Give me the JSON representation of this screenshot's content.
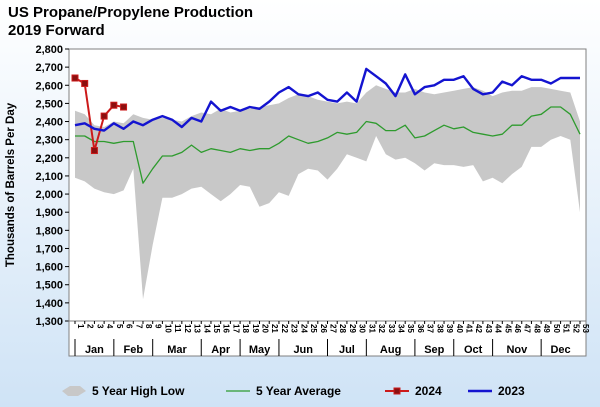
{
  "chart_data": {
    "type": "line",
    "title": "US Propane/Propylene Production",
    "subtitle": "2019 Forward",
    "ylabel": "Thousands of Barrels Per Day",
    "xlabel": "",
    "ylim": [
      1300,
      2800
    ],
    "yticks": [
      1300,
      1400,
      1500,
      1600,
      1700,
      1800,
      1900,
      2000,
      2100,
      2200,
      2300,
      2400,
      2500,
      2600,
      2700,
      2800
    ],
    "ytick_labels": [
      "1,300",
      "1,400",
      "1,500",
      "1,600",
      "1,700",
      "1,800",
      "1,900",
      "2,000",
      "2,100",
      "2,200",
      "2,300",
      "2,400",
      "2,500",
      "2,600",
      "2,700",
      "2,800"
    ],
    "xlim": [
      1,
      53
    ],
    "week_ticks": [
      "1",
      "2",
      "3",
      "4",
      "5",
      "6",
      "7",
      "8",
      "9",
      "10",
      "11",
      "12",
      "13",
      "14",
      "15",
      "16",
      "17",
      "18",
      "19",
      "20",
      "21",
      "22",
      "23",
      "24",
      "25",
      "26",
      "27",
      "28",
      "29",
      "30",
      "31",
      "32",
      "33",
      "34",
      "35",
      "36",
      "37",
      "38",
      "39",
      "40",
      "41",
      "42",
      "43",
      "44",
      "45",
      "46",
      "47",
      "48",
      "49",
      "50",
      "51",
      "52",
      "53"
    ],
    "months": [
      {
        "label": "Jan",
        "start": 1,
        "end": 5
      },
      {
        "label": "Feb",
        "start": 5,
        "end": 9
      },
      {
        "label": "Mar",
        "start": 9,
        "end": 14
      },
      {
        "label": "Apr",
        "start": 14,
        "end": 18
      },
      {
        "label": "May",
        "start": 18,
        "end": 22
      },
      {
        "label": "Jun",
        "start": 22,
        "end": 27
      },
      {
        "label": "Jul",
        "start": 27,
        "end": 31
      },
      {
        "label": "Aug",
        "start": 31,
        "end": 36
      },
      {
        "label": "Sep",
        "start": 36,
        "end": 40
      },
      {
        "label": "Oct",
        "start": 40,
        "end": 44
      },
      {
        "label": "Nov",
        "start": 44,
        "end": 49
      },
      {
        "label": "Dec",
        "start": 49,
        "end": 53
      }
    ],
    "series": [
      {
        "name": "5 Year High Low",
        "kind": "band",
        "color": "#c8c8c8",
        "x": [
          1,
          2,
          3,
          4,
          5,
          6,
          7,
          8,
          9,
          10,
          11,
          12,
          13,
          14,
          15,
          16,
          17,
          18,
          19,
          20,
          21,
          22,
          23,
          24,
          25,
          26,
          27,
          28,
          29,
          30,
          31,
          32,
          33,
          34,
          35,
          36,
          37,
          38,
          39,
          40,
          41,
          42,
          43,
          44,
          45,
          46,
          47,
          48,
          49,
          50,
          51,
          52,
          53
        ],
        "high": [
          2460,
          2440,
          2380,
          2370,
          2400,
          2390,
          2440,
          2420,
          2410,
          2420,
          2410,
          2400,
          2430,
          2450,
          2440,
          2470,
          2450,
          2460,
          2470,
          2480,
          2490,
          2500,
          2530,
          2550,
          2540,
          2520,
          2510,
          2500,
          2510,
          2500,
          2560,
          2600,
          2580,
          2560,
          2560,
          2580,
          2560,
          2550,
          2560,
          2570,
          2580,
          2590,
          2570,
          2540,
          2560,
          2570,
          2570,
          2590,
          2590,
          2580,
          2570,
          2560,
          2400
        ],
        "low": [
          2090,
          2070,
          2030,
          2010,
          2000,
          2020,
          2140,
          1420,
          1720,
          1980,
          1980,
          2000,
          2030,
          2040,
          2000,
          1960,
          2000,
          2050,
          2040,
          1930,
          1950,
          2010,
          1990,
          2110,
          2140,
          2130,
          2080,
          2140,
          2220,
          2200,
          2180,
          2320,
          2220,
          2190,
          2200,
          2170,
          2130,
          2170,
          2160,
          2160,
          2150,
          2160,
          2070,
          2090,
          2060,
          2110,
          2150,
          2260,
          2260,
          2300,
          2320,
          2300,
          1900
        ]
      },
      {
        "name": "5 Year Average",
        "kind": "line",
        "color": "#2e9b2e",
        "x": [
          1,
          2,
          3,
          4,
          5,
          6,
          7,
          8,
          9,
          10,
          11,
          12,
          13,
          14,
          15,
          16,
          17,
          18,
          19,
          20,
          21,
          22,
          23,
          24,
          25,
          26,
          27,
          28,
          29,
          30,
          31,
          32,
          33,
          34,
          35,
          36,
          37,
          38,
          39,
          40,
          41,
          42,
          43,
          44,
          45,
          46,
          47,
          48,
          49,
          50,
          51,
          52,
          53
        ],
        "values": [
          2320,
          2320,
          2290,
          2290,
          2280,
          2290,
          2290,
          2060,
          2140,
          2210,
          2210,
          2230,
          2270,
          2230,
          2250,
          2240,
          2230,
          2250,
          2240,
          2250,
          2250,
          2280,
          2320,
          2300,
          2280,
          2290,
          2310,
          2340,
          2330,
          2340,
          2400,
          2390,
          2350,
          2350,
          2380,
          2310,
          2320,
          2350,
          2380,
          2360,
          2370,
          2340,
          2330,
          2320,
          2330,
          2380,
          2380,
          2430,
          2440,
          2480,
          2480,
          2440,
          2330
        ]
      },
      {
        "name": "2024",
        "kind": "line",
        "color": "#cc1a1a",
        "marker": "square",
        "x": [
          1,
          2,
          3,
          4,
          5,
          6
        ],
        "values": [
          2640,
          2610,
          2240,
          2430,
          2490,
          2480
        ]
      },
      {
        "name": "2023",
        "kind": "line",
        "color": "#1414d0",
        "x": [
          1,
          2,
          3,
          4,
          5,
          6,
          7,
          8,
          9,
          10,
          11,
          12,
          13,
          14,
          15,
          16,
          17,
          18,
          19,
          20,
          21,
          22,
          23,
          24,
          25,
          26,
          27,
          28,
          29,
          30,
          31,
          32,
          33,
          34,
          35,
          36,
          37,
          38,
          39,
          40,
          41,
          42,
          43,
          44,
          45,
          46,
          47,
          48,
          49,
          50,
          51,
          52,
          53
        ],
        "values": [
          2380,
          2390,
          2360,
          2350,
          2390,
          2360,
          2400,
          2380,
          2410,
          2430,
          2410,
          2370,
          2420,
          2400,
          2510,
          2460,
          2480,
          2460,
          2480,
          2470,
          2510,
          2560,
          2590,
          2550,
          2540,
          2560,
          2520,
          2510,
          2560,
          2510,
          2690,
          2650,
          2610,
          2540,
          2660,
          2550,
          2590,
          2600,
          2630,
          2630,
          2650,
          2580,
          2550,
          2560,
          2620,
          2600,
          2650,
          2630,
          2630,
          2610,
          2640,
          2640,
          2640
        ]
      }
    ],
    "legend_position": "bottom",
    "grid": false
  }
}
